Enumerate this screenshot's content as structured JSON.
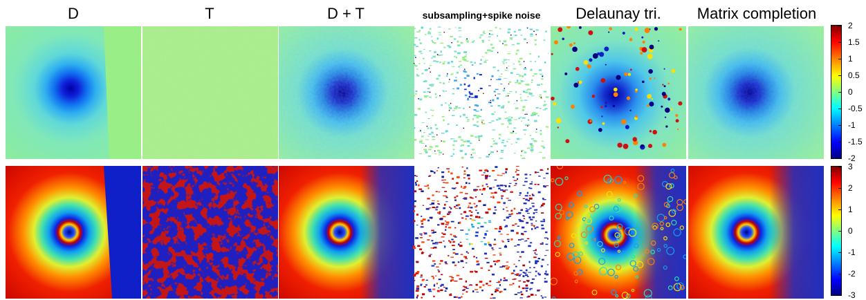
{
  "columns": [
    {
      "title": "D"
    },
    {
      "title": "T"
    },
    {
      "title": "D + T"
    },
    {
      "title": "subsampling+spike noise"
    },
    {
      "title": "Delaunay tri."
    },
    {
      "title": "Matrix completion"
    }
  ],
  "colorbars": {
    "top": {
      "ticks": [
        "2",
        "1.5",
        "1",
        "0.5",
        "0",
        "-0.5",
        "-1",
        "-1.5",
        "-2"
      ],
      "colormap": "jet"
    },
    "bottom": {
      "ticks": [
        "3",
        "2",
        "1",
        "0",
        "-1",
        "-2",
        "-3"
      ],
      "colormap": "jet"
    }
  }
}
